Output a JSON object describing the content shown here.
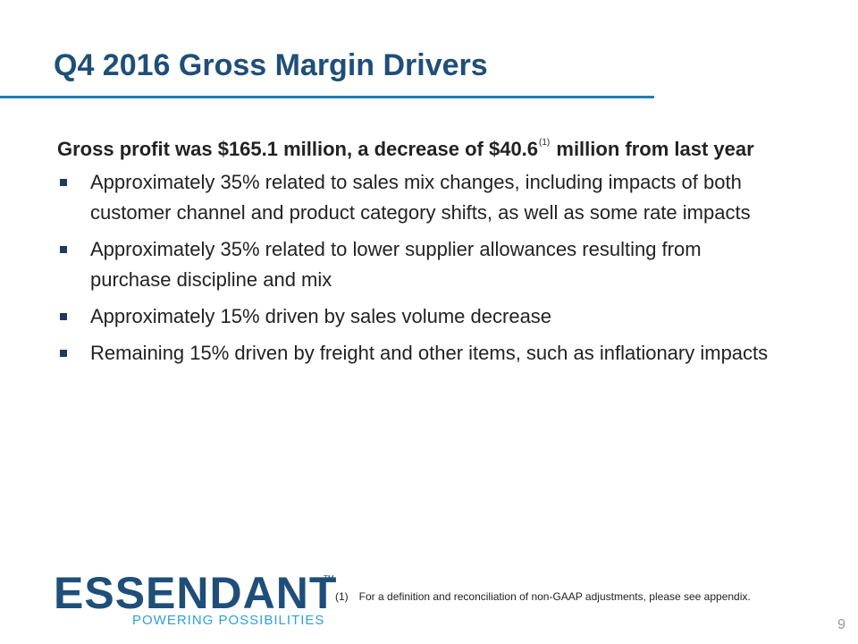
{
  "slide": {
    "title": "Q4 2016 Gross Margin Drivers",
    "lead_part1": "Gross profit was $165.1 million, a decrease of $40.6",
    "lead_sup": "(1)",
    "lead_part2": " million from last year",
    "bullets": [
      "Approximately 35% related to sales mix changes, including impacts of both customer channel and product category shifts, as well as some rate impacts",
      "Approximately 35% related to lower supplier allowances resulting from purchase discipline and mix",
      "Approximately 15% driven by sales volume decrease",
      "Remaining 15% driven by freight and other items, such as inflationary impacts"
    ]
  },
  "footer": {
    "logo_word": "ESSENDANT",
    "logo_tm": "TM",
    "logo_tagline": "POWERING POSSIBILITIES",
    "footnote_num": "(1)",
    "footnote_text": "For a definition and reconciliation of non-GAAP adjustments, please see appendix.",
    "page_number": "9"
  },
  "colors": {
    "title": "#1f4e79",
    "rule": "#1f7fb8",
    "tagline": "#2fa0d6"
  }
}
